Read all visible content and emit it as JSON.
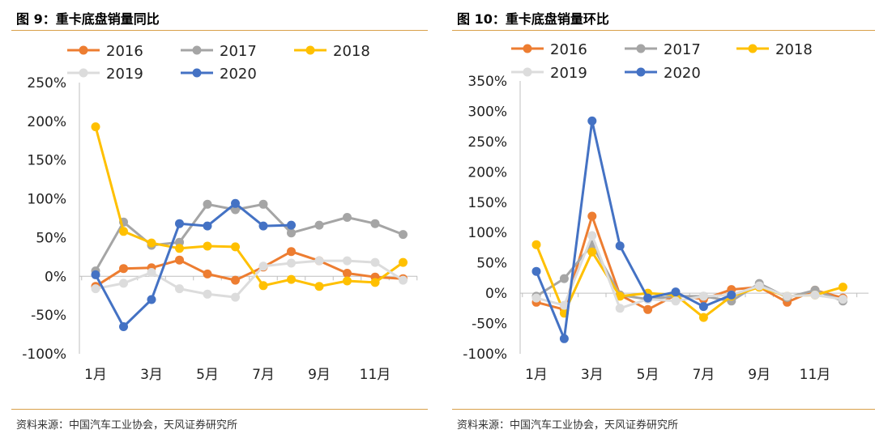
{
  "panels": [
    {
      "title": "图 9：重卡底盘销量同比",
      "source": "资料来源：中国汽车工业协会，天风证券研究所"
    },
    {
      "title": "图 10：重卡底盘销量环比",
      "source": "资料来源：中国汽车工业协会，天风证券研究所"
    }
  ],
  "chart_data": [
    {
      "type": "line",
      "title": "图 9：重卡底盘销量同比",
      "x": [
        "1月",
        "2月",
        "3月",
        "4月",
        "5月",
        "6月",
        "7月",
        "8月",
        "9月",
        "10月",
        "11月",
        "12月"
      ],
      "x_tick_labels": [
        "1月",
        "3月",
        "5月",
        "7月",
        "9月",
        "11月"
      ],
      "y_tick_labels": [
        "250%",
        "200%",
        "150%",
        "100%",
        "50%",
        "0%",
        "-50%",
        "-100%"
      ],
      "ylim": [
        -100,
        250
      ],
      "y_unit": "%",
      "grid": false,
      "legend": "top",
      "series": [
        {
          "name": "2016",
          "color": "#ed7d31",
          "values": [
            -13,
            10,
            11,
            21,
            3,
            -5,
            12,
            32,
            20,
            4,
            -1,
            -3
          ]
        },
        {
          "name": "2017",
          "color": "#a5a5a5",
          "values": [
            7,
            70,
            40,
            44,
            93,
            86,
            93,
            56,
            66,
            76,
            68,
            54
          ]
        },
        {
          "name": "2018",
          "color": "#ffc000",
          "values": [
            193,
            58,
            43,
            36,
            39,
            38,
            -12,
            -4,
            -13,
            -6,
            -8,
            18
          ]
        },
        {
          "name": "2019",
          "color": "#dcdcdc",
          "values": [
            -16,
            -9,
            5,
            -16,
            -23,
            -27,
            13,
            17,
            20,
            20,
            18,
            -5
          ]
        },
        {
          "name": "2020",
          "color": "#4472c4",
          "values": [
            2,
            -65,
            -30,
            68,
            65,
            94,
            65,
            66,
            null,
            null,
            null,
            null
          ]
        }
      ]
    },
    {
      "type": "line",
      "title": "图 10：重卡底盘销量环比",
      "x": [
        "1月",
        "2月",
        "3月",
        "4月",
        "5月",
        "6月",
        "7月",
        "8月",
        "9月",
        "10月",
        "11月",
        "12月"
      ],
      "x_tick_labels": [
        "1月",
        "3月",
        "5月",
        "7月",
        "9月",
        "11月"
      ],
      "y_tick_labels": [
        "350%",
        "300%",
        "250%",
        "200%",
        "150%",
        "100%",
        "50%",
        "0%",
        "-50%",
        "-100%"
      ],
      "ylim": [
        -100,
        350
      ],
      "y_unit": "%",
      "grid": false,
      "legend": "top",
      "series": [
        {
          "name": "2016",
          "color": "#ed7d31",
          "values": [
            -15,
            -27,
            127,
            -3,
            -27,
            -3,
            -10,
            6,
            10,
            -15,
            5,
            -8
          ]
        },
        {
          "name": "2017",
          "color": "#a5a5a5",
          "values": [
            -5,
            24,
            80,
            -3,
            -10,
            -5,
            -5,
            -13,
            16,
            -7,
            5,
            -13
          ]
        },
        {
          "name": "2018",
          "color": "#ffc000",
          "values": [
            80,
            -33,
            68,
            -5,
            0,
            -3,
            -40,
            -5,
            10,
            -5,
            -3,
            10
          ]
        },
        {
          "name": "2019",
          "color": "#dcdcdc",
          "values": [
            -8,
            -20,
            95,
            -25,
            -10,
            -13,
            -5,
            -3,
            12,
            -5,
            -3,
            -10
          ]
        },
        {
          "name": "2020",
          "color": "#4472c4",
          "values": [
            36,
            -75,
            284,
            78,
            -8,
            2,
            -22,
            -3,
            null,
            null,
            null,
            null
          ]
        }
      ]
    }
  ]
}
